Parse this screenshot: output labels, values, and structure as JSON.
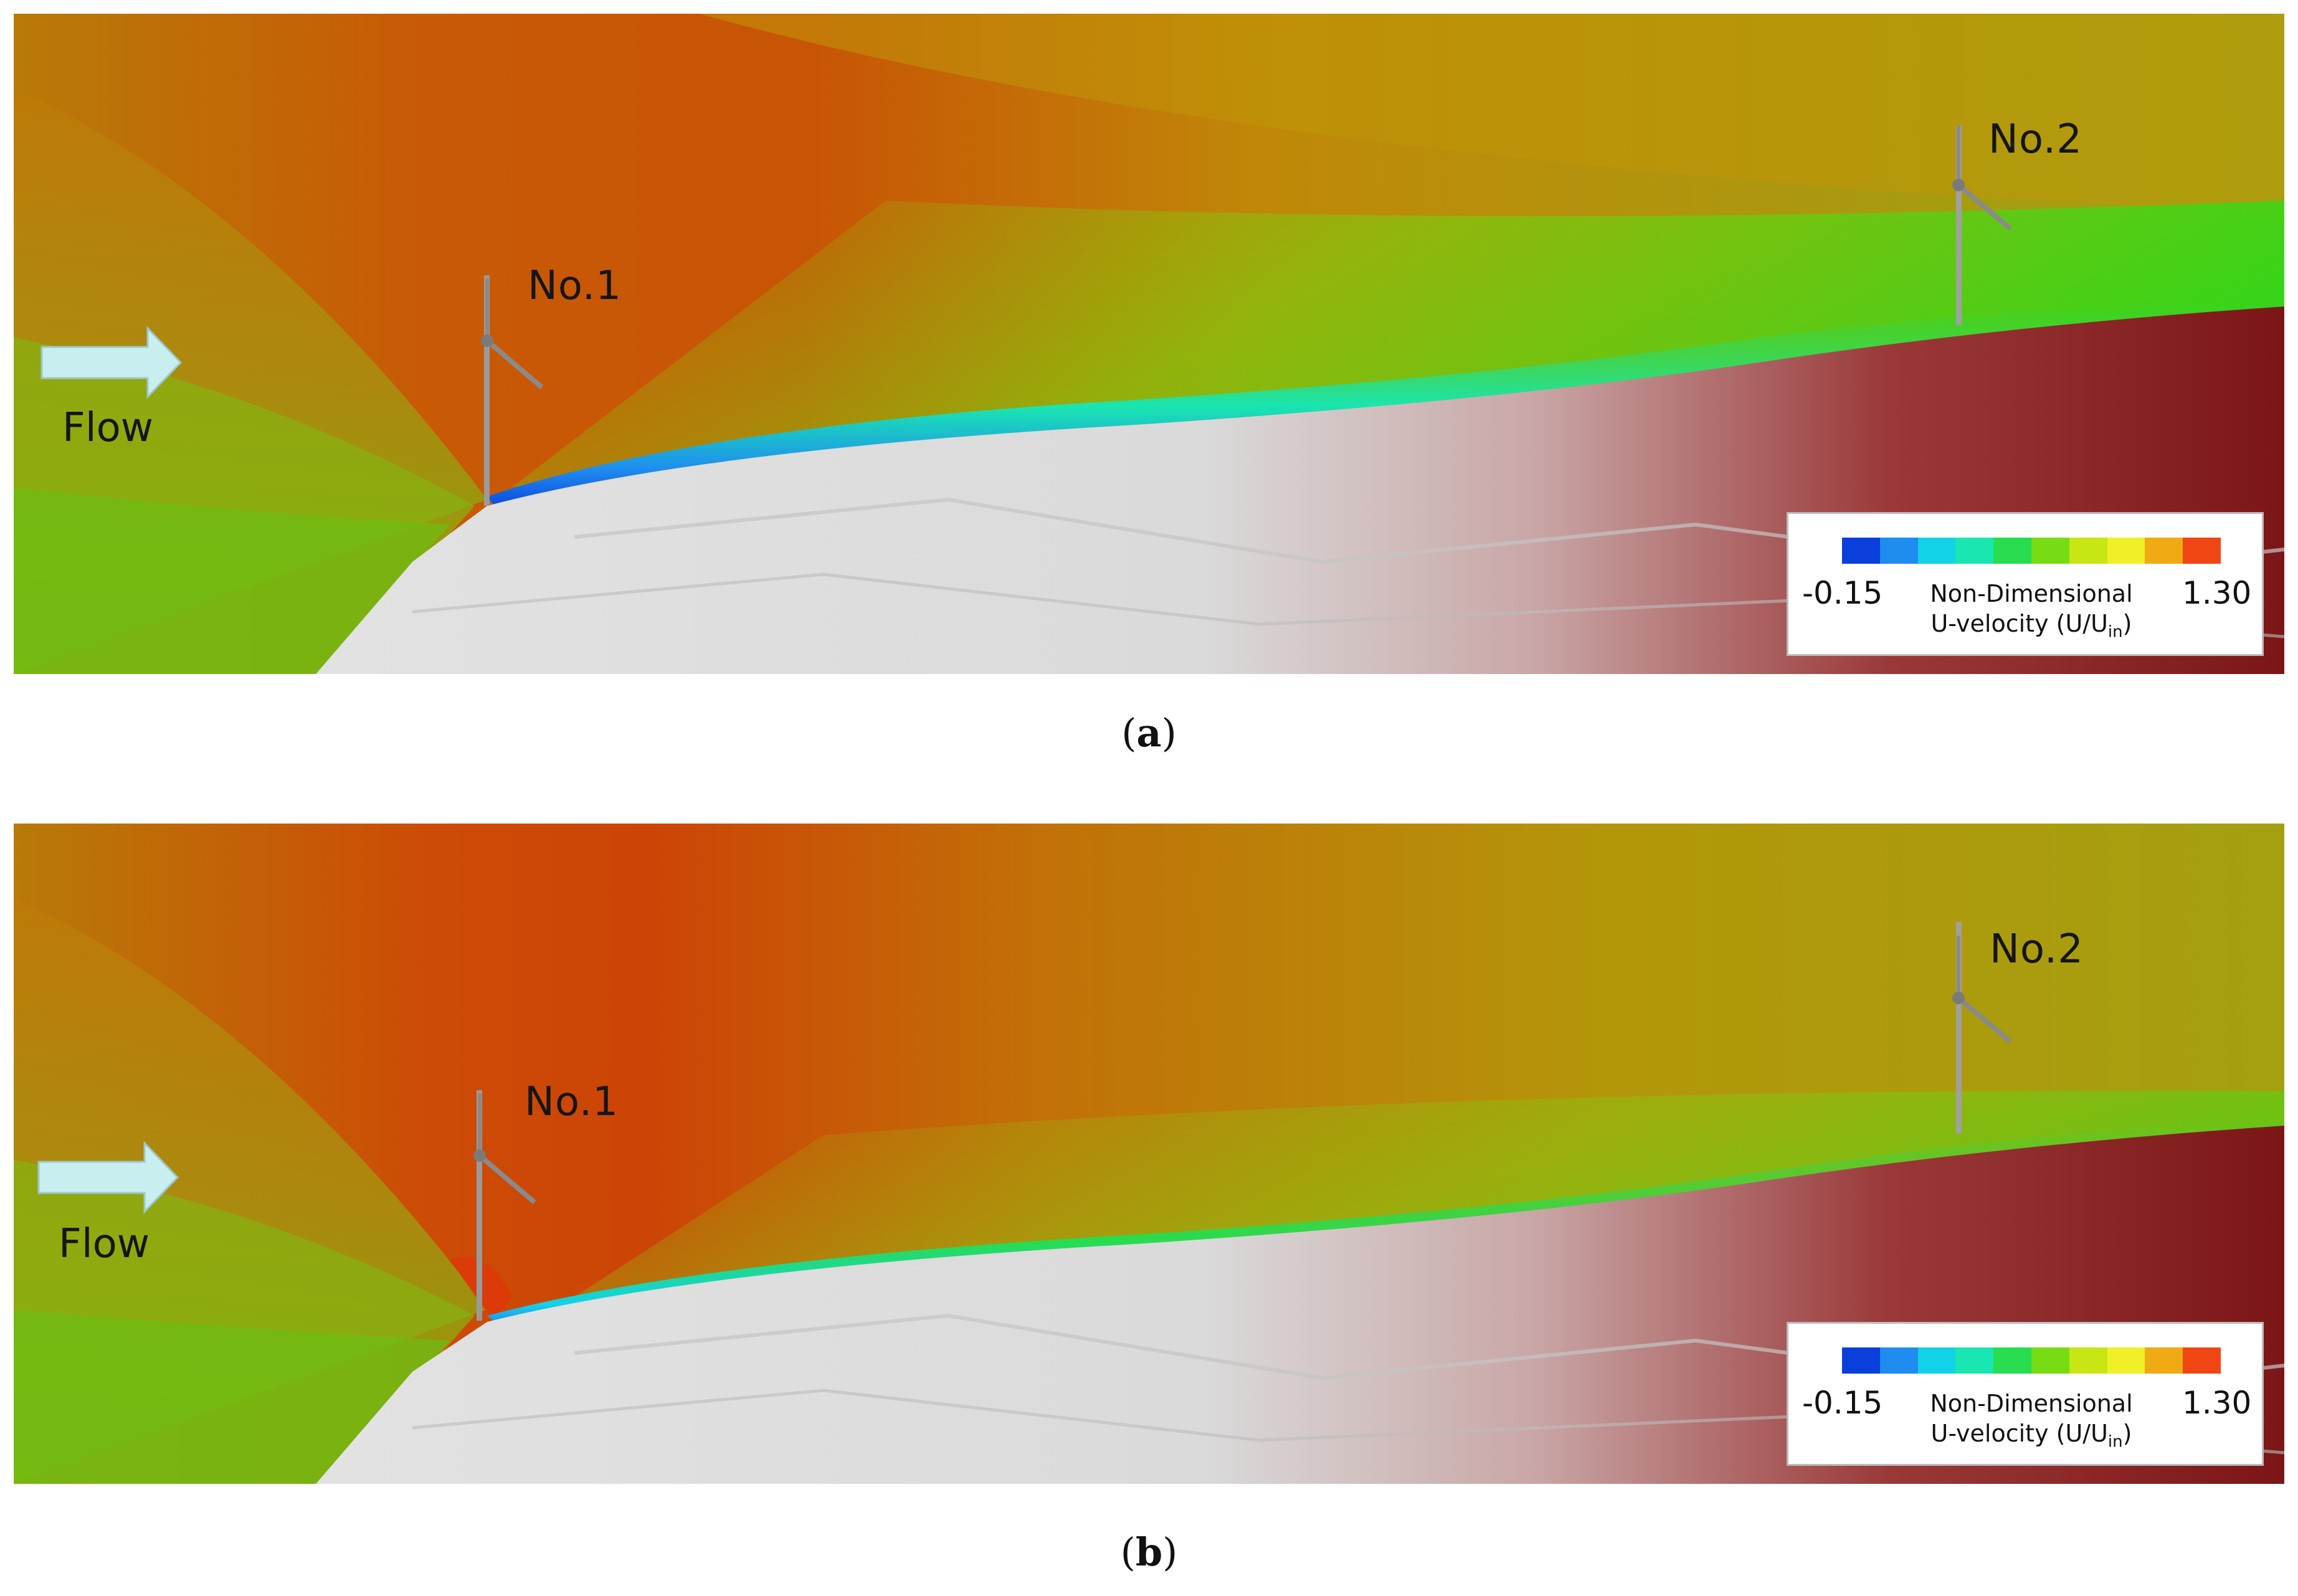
{
  "panels": [
    {
      "id": "a",
      "caption_letter": "a",
      "flow_label": "Flow",
      "turbine_labels": [
        "No.1",
        "No.2"
      ],
      "legend": {
        "min": "-0.15",
        "max": "1.30",
        "title_line1": "Non-Dimensional",
        "title_line2_prefix": "U-velocity (U/U",
        "title_line2_sub": "in",
        "title_line2_suffix": ")"
      }
    },
    {
      "id": "b",
      "caption_letter": "b",
      "flow_label": "Flow",
      "turbine_labels": [
        "No.1",
        "No.2"
      ],
      "legend": {
        "min": "-0.15",
        "max": "1.30",
        "title_line1": "Non-Dimensional",
        "title_line2_prefix": "U-velocity (U/U",
        "title_line2_sub": "in",
        "title_line2_suffix": ")"
      }
    }
  ],
  "colormap": [
    "#0a3fdc",
    "#1f8cf0",
    "#12d2e8",
    "#19e6b0",
    "#28dc50",
    "#78dc14",
    "#c8e614",
    "#f0f028",
    "#f0aa14",
    "#f04614"
  ],
  "colors": {
    "sky_high": "#c84a08",
    "sky_mid": "#c86a0a",
    "sky_low": "#9aa414",
    "ground_low": "#6ebe10",
    "terrain_light": "#dcdcdc",
    "terrain_dark": "#8a1e1e"
  }
}
